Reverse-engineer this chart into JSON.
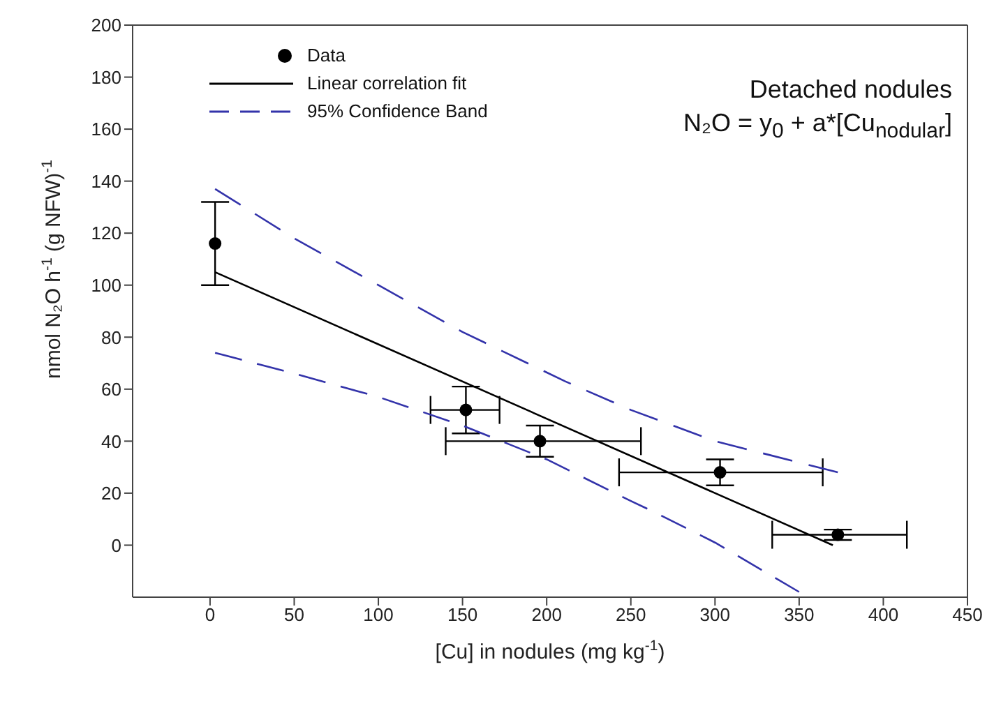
{
  "chart_data": {
    "type": "scatter",
    "xlabel": "[Cu] in nodules (mg kg$^{-1}$)",
    "ylabel": "nmol N₂O h$^{-1}$ (g NFW)$^{-1}$",
    "annotations": [
      "Detached nodules",
      "N₂O = y$_{0}$ + a*[Cu$_{nodular}$]"
    ],
    "xlim": [
      -46,
      450
    ],
    "xticks": [
      0,
      50,
      100,
      150,
      200,
      250,
      300,
      350,
      400,
      450
    ],
    "ylim": [
      -20,
      200
    ],
    "yticks": [
      0,
      20,
      40,
      60,
      80,
      100,
      120,
      140,
      160,
      180,
      200
    ],
    "legend": "top left",
    "series": [
      {
        "name": "Data",
        "color": "#000000",
        "marker": "circle",
        "x": [
          3,
          152,
          196,
          303,
          373
        ],
        "values": [
          116,
          52,
          40,
          28,
          4
        ],
        "errors": [
          [
            100,
            132
          ],
          [
            43,
            61
          ],
          [
            34,
            46
          ],
          [
            23,
            33
          ],
          [
            2,
            6
          ]
        ],
        "xerrors": [
          null,
          [
            131,
            172
          ],
          [
            140,
            256
          ],
          [
            243,
            364
          ],
          [
            334,
            414
          ]
        ]
      },
      {
        "name": "Linear correlation fit",
        "type": "line",
        "color": "#000000",
        "marker": "none",
        "line_style": "solid",
        "x": [
          3,
          370
        ],
        "values": [
          105,
          0
        ]
      },
      {
        "name": "95% Confidence Band",
        "type": "line",
        "color": "#3333aa",
        "marker": "none",
        "line_style": "dashed",
        "x": [
          3,
          50,
          100,
          150,
          211,
          250,
          300,
          373
        ],
        "values": [
          137,
          118,
          100,
          82,
          63,
          52,
          40,
          28
        ]
      },
      {
        "type": "line",
        "color": "#3333aa",
        "marker": "none",
        "line_style": "dashed",
        "x": [
          3,
          50,
          100,
          150,
          200,
          250,
          263,
          300,
          350
        ],
        "values": [
          74,
          66,
          57,
          46,
          33,
          17,
          13,
          1,
          -18
        ]
      }
    ]
  }
}
